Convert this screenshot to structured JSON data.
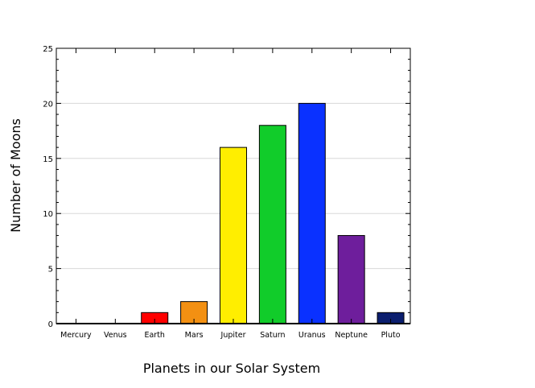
{
  "chart_data": {
    "type": "bar",
    "title": "",
    "xlabel": "Planets in our Solar System",
    "ylabel": "Number of Moons",
    "categories": [
      "Mercury",
      "Venus",
      "Earth",
      "Mars",
      "Jupiter",
      "Saturn",
      "Uranus",
      "Neptune",
      "Pluto"
    ],
    "values": [
      0,
      0,
      1,
      2,
      16,
      18,
      20,
      8,
      1
    ],
    "colors": [
      "#000000",
      "#000000",
      "#ff0000",
      "#f39012",
      "#ffee00",
      "#11cc2a",
      "#0a31ff",
      "#6e1e9c",
      "#0b1e6e"
    ],
    "ylim": [
      0,
      25
    ],
    "yticks": [
      0,
      5,
      10,
      15,
      20,
      25
    ],
    "grid": true,
    "legend": "none"
  }
}
